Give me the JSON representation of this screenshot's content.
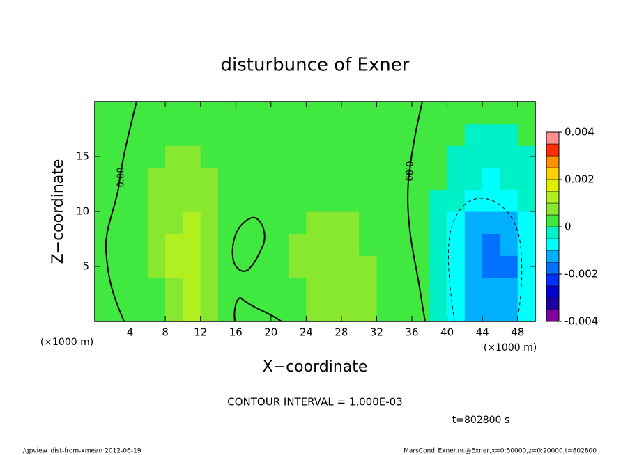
{
  "chart_data": {
    "type": "heatmap",
    "title": "disturbunce of Exner",
    "xlabel": "X−coordinate",
    "ylabel": "Z−coordinate",
    "x_unit_label": "(×1000 m)",
    "x_unit_label_right": "(×1000 m)",
    "contour_interval": "CONTOUR INTERVAL = 1.000E-03",
    "time_label": "t=802800 s",
    "footer_left": "./gpview_dist-from-xmean   2012-06-19",
    "footer_right": "MarsCond_Exner.nc@Exner,x=0:50000,z=0:20000,t=802800",
    "contour_labels": [
      "0.00",
      "0.00"
    ],
    "xlim": [
      0,
      50
    ],
    "ylim": [
      0,
      20
    ],
    "xticks": [
      4,
      8,
      12,
      16,
      20,
      24,
      28,
      32,
      36,
      40,
      44,
      48
    ],
    "yticks": [
      5,
      10,
      15
    ],
    "x": [
      1,
      3,
      5,
      7,
      9,
      11,
      13,
      15,
      17,
      19,
      21,
      23,
      25,
      27,
      29,
      31,
      33,
      35,
      37,
      39,
      41,
      43,
      45,
      47,
      49
    ],
    "y": [
      1,
      3,
      5,
      7,
      9,
      11,
      13,
      15,
      17,
      19
    ],
    "z": [
      [
        0.0002,
        0.0002,
        0.0002,
        0.0002,
        0.0007,
        0.0012,
        0.0007,
        0.0002,
        0.0002,
        0.0002,
        0.0002,
        0.0002,
        0.0007,
        0.0007,
        0.0007,
        0.0007,
        0.0002,
        0.0002,
        0.0002,
        -0.0003,
        -0.0008,
        -0.0012,
        -0.0012,
        -0.0012,
        -0.0008
      ],
      [
        0.0002,
        0.0002,
        0.0002,
        0.0002,
        0.0007,
        0.0012,
        0.0007,
        0.0002,
        0.0002,
        0.0002,
        0.0002,
        0.0002,
        0.0007,
        0.0007,
        0.0007,
        0.0007,
        0.0002,
        0.0002,
        0.0002,
        -0.0003,
        -0.0008,
        -0.0012,
        -0.0012,
        -0.0012,
        -0.0008
      ],
      [
        0.0002,
        0.0002,
        0.0002,
        0.0007,
        0.0012,
        0.0012,
        0.0007,
        0.0002,
        0.0002,
        0.0002,
        0.0002,
        0.0007,
        0.0007,
        0.0007,
        0.0007,
        0.0007,
        0.0002,
        0.0002,
        0.0002,
        -0.0003,
        -0.0008,
        -0.0012,
        -0.0017,
        -0.0017,
        -0.0008
      ],
      [
        0.0002,
        0.0002,
        0.0002,
        0.0007,
        0.0012,
        0.0012,
        0.0007,
        0.0002,
        0.0002,
        0.0002,
        0.0002,
        0.0007,
        0.0007,
        0.0007,
        0.0007,
        0.0002,
        0.0002,
        0.0002,
        0.0002,
        -0.0003,
        -0.0008,
        -0.0012,
        -0.0017,
        -0.0012,
        -0.0008
      ],
      [
        0.0002,
        0.0002,
        0.0002,
        0.0007,
        0.0007,
        0.0012,
        0.0007,
        0.0002,
        0.0002,
        0.0002,
        0.0002,
        0.0002,
        0.0007,
        0.0007,
        0.0007,
        0.0002,
        0.0002,
        0.0002,
        0.0002,
        -0.0003,
        -0.0008,
        -0.0012,
        -0.0012,
        -0.0012,
        -0.0008
      ],
      [
        0.0002,
        0.0002,
        0.0002,
        0.0007,
        0.0007,
        0.0007,
        0.0007,
        0.0002,
        0.0002,
        0.0002,
        0.0002,
        0.0002,
        0.0002,
        0.0002,
        0.0002,
        0.0002,
        0.0002,
        0.0002,
        0.0002,
        -0.0003,
        -0.0003,
        -0.0008,
        -0.0008,
        -0.0008,
        -0.0003
      ],
      [
        0.0002,
        0.0002,
        0.0002,
        0.0007,
        0.0007,
        0.0007,
        0.0007,
        0.0002,
        0.0002,
        0.0002,
        0.0002,
        0.0002,
        0.0002,
        0.0002,
        0.0002,
        0.0002,
        0.0002,
        0.0002,
        0.0002,
        0.0002,
        -0.0003,
        -0.0003,
        -0.0008,
        -0.0003,
        -0.0003
      ],
      [
        0.0002,
        0.0002,
        0.0002,
        0.0002,
        0.0007,
        0.0007,
        0.0002,
        0.0002,
        0.0002,
        0.0002,
        0.0002,
        0.0002,
        0.0002,
        0.0002,
        0.0002,
        0.0002,
        0.0002,
        0.0002,
        0.0002,
        0.0002,
        -0.0003,
        -0.0003,
        -0.0003,
        -0.0003,
        -0.0003
      ],
      [
        0.0002,
        0.0002,
        0.0002,
        0.0002,
        0.0002,
        0.0002,
        0.0002,
        0.0002,
        0.0002,
        0.0002,
        0.0002,
        0.0002,
        0.0002,
        0.0002,
        0.0002,
        0.0002,
        0.0002,
        0.0002,
        0.0002,
        0.0002,
        0.0002,
        -0.0003,
        -0.0003,
        -0.0003,
        0.0002
      ],
      [
        0.0002,
        0.0002,
        0.0002,
        0.0002,
        0.0002,
        0.0002,
        0.0002,
        0.0002,
        0.0002,
        0.0002,
        0.0002,
        0.0002,
        0.0002,
        0.0002,
        0.0002,
        0.0002,
        0.0002,
        0.0002,
        0.0002,
        0.0002,
        0.0002,
        0.0002,
        0.0002,
        0.0002,
        0.0002
      ]
    ],
    "levels": [
      -0.004,
      -0.0035,
      -0.003,
      -0.0025,
      -0.002,
      -0.0015,
      -0.001,
      -0.0005,
      0,
      0.0005,
      0.001,
      0.0015,
      0.002,
      0.0025,
      0.003,
      0.0035,
      0.004
    ],
    "colors": [
      "#8000a0",
      "#2000a0",
      "#0000d0",
      "#0030ff",
      "#0070ff",
      "#00b0ff",
      "#00ffff",
      "#00f0c8",
      "#40e840",
      "#88e830",
      "#b0f020",
      "#e0f000",
      "#ffd000",
      "#ff9000",
      "#ff3000",
      "#ff9090"
    ],
    "colorbar_ticks": [
      -0.004,
      -0.002,
      0,
      0.002,
      0.004
    ]
  }
}
